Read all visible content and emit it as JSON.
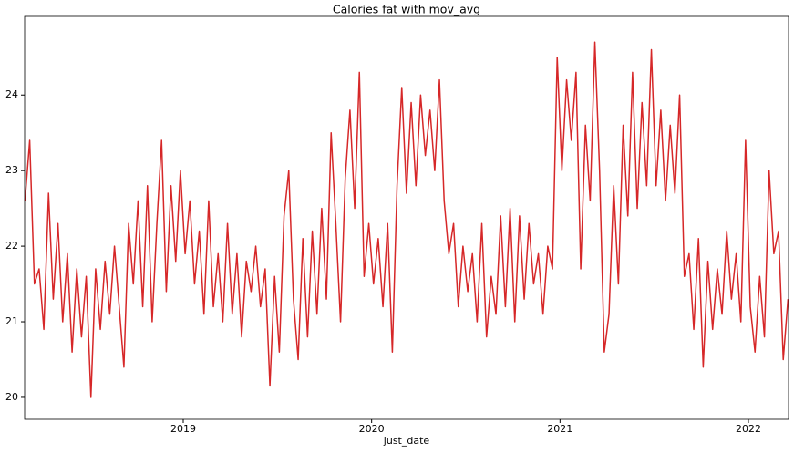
{
  "chart_data": {
    "type": "line",
    "title": "Calories fat with mov_avg",
    "x_label": "just_date",
    "xlim": [
      2018.158,
      2022.213
    ],
    "xticks": [
      2019,
      2020,
      2021,
      2022
    ],
    "ylim": [
      19.71,
      25.04
    ],
    "yticks": [
      20,
      21,
      22,
      23,
      24
    ],
    "grid": false,
    "x": [
      2018.16,
      2018.185,
      2018.21,
      2018.235,
      2018.26,
      2018.285,
      2018.31,
      2018.335,
      2018.36,
      2018.385,
      2018.41,
      2018.435,
      2018.46,
      2018.485,
      2018.51,
      2018.535,
      2018.56,
      2018.585,
      2018.61,
      2018.635,
      2018.66,
      2018.685,
      2018.71,
      2018.735,
      2018.76,
      2018.785,
      2018.81,
      2018.835,
      2018.86,
      2018.885,
      2018.91,
      2018.935,
      2018.96,
      2018.985,
      2019.01,
      2019.035,
      2019.06,
      2019.085,
      2019.11,
      2019.135,
      2019.16,
      2019.185,
      2019.21,
      2019.235,
      2019.26,
      2019.285,
      2019.31,
      2019.335,
      2019.36,
      2019.385,
      2019.41,
      2019.435,
      2019.46,
      2019.485,
      2019.51,
      2019.535,
      2019.56,
      2019.585,
      2019.61,
      2019.635,
      2019.66,
      2019.685,
      2019.71,
      2019.735,
      2019.76,
      2019.785,
      2019.81,
      2019.835,
      2019.86,
      2019.885,
      2019.91,
      2019.935,
      2019.96,
      2019.985,
      2020.01,
      2020.035,
      2020.06,
      2020.085,
      2020.11,
      2020.135,
      2020.16,
      2020.185,
      2020.21,
      2020.235,
      2020.26,
      2020.285,
      2020.31,
      2020.335,
      2020.36,
      2020.385,
      2020.41,
      2020.435,
      2020.46,
      2020.485,
      2020.51,
      2020.535,
      2020.56,
      2020.585,
      2020.61,
      2020.635,
      2020.66,
      2020.685,
      2020.71,
      2020.735,
      2020.76,
      2020.785,
      2020.81,
      2020.835,
      2020.86,
      2020.885,
      2020.91,
      2020.935,
      2020.96,
      2020.985,
      2021.01,
      2021.035,
      2021.06,
      2021.085,
      2021.11,
      2021.135,
      2021.16,
      2021.185,
      2021.21,
      2021.235,
      2021.26,
      2021.285,
      2021.31,
      2021.335,
      2021.36,
      2021.385,
      2021.41,
      2021.435,
      2021.46,
      2021.485,
      2021.51,
      2021.535,
      2021.56,
      2021.585,
      2021.61,
      2021.635,
      2021.66,
      2021.685,
      2021.71,
      2021.735,
      2021.76,
      2021.785,
      2021.81,
      2021.835,
      2021.86,
      2021.885,
      2021.91,
      2021.935,
      2021.96,
      2021.985,
      2022.01,
      2022.035,
      2022.06,
      2022.085,
      2022.11,
      2022.135,
      2022.16,
      2022.185,
      2022.21
    ],
    "series": [
      {
        "name": "mov_avg",
        "color": "#d62728",
        "values": [
          22.6,
          23.4,
          21.5,
          21.7,
          20.9,
          22.7,
          21.3,
          22.3,
          21.0,
          21.9,
          20.6,
          21.7,
          20.8,
          21.6,
          20.0,
          21.7,
          20.9,
          21.8,
          21.1,
          22.0,
          21.2,
          20.4,
          22.3,
          21.5,
          22.6,
          21.2,
          22.8,
          21.0,
          22.3,
          23.4,
          21.4,
          22.8,
          21.8,
          23.0,
          21.9,
          22.6,
          21.5,
          22.2,
          21.1,
          22.6,
          21.2,
          21.9,
          21.0,
          22.3,
          21.1,
          21.9,
          20.8,
          21.8,
          21.4,
          22.0,
          21.2,
          21.7,
          20.15,
          21.6,
          20.6,
          22.4,
          23.0,
          21.3,
          20.5,
          22.1,
          20.8,
          22.2,
          21.1,
          22.5,
          21.3,
          23.5,
          22.3,
          21.0,
          22.9,
          23.8,
          22.5,
          24.3,
          21.6,
          22.3,
          21.5,
          22.1,
          21.2,
          22.3,
          20.6,
          22.8,
          24.1,
          22.7,
          23.9,
          22.8,
          24.0,
          23.2,
          23.8,
          23.0,
          24.2,
          22.6,
          21.9,
          22.3,
          21.2,
          22.0,
          21.4,
          21.9,
          21.0,
          22.3,
          20.8,
          21.6,
          21.1,
          22.4,
          21.2,
          22.5,
          21.0,
          22.4,
          21.3,
          22.3,
          21.5,
          21.9,
          21.1,
          22.0,
          21.7,
          24.5,
          23.0,
          24.2,
          23.4,
          24.3,
          21.7,
          23.6,
          22.6,
          24.7,
          23.0,
          20.6,
          21.1,
          22.8,
          21.5,
          23.6,
          22.4,
          24.3,
          22.5,
          23.9,
          22.8,
          24.6,
          22.8,
          23.8,
          22.6,
          23.6,
          22.7,
          24.0,
          21.6,
          21.9,
          20.9,
          22.1,
          20.4,
          21.8,
          20.9,
          21.7,
          21.1,
          22.2,
          21.3,
          21.9,
          21.0,
          23.4,
          21.2,
          20.6,
          21.6,
          20.8,
          23.0,
          21.9,
          22.2,
          20.5,
          21.3
        ]
      }
    ]
  }
}
